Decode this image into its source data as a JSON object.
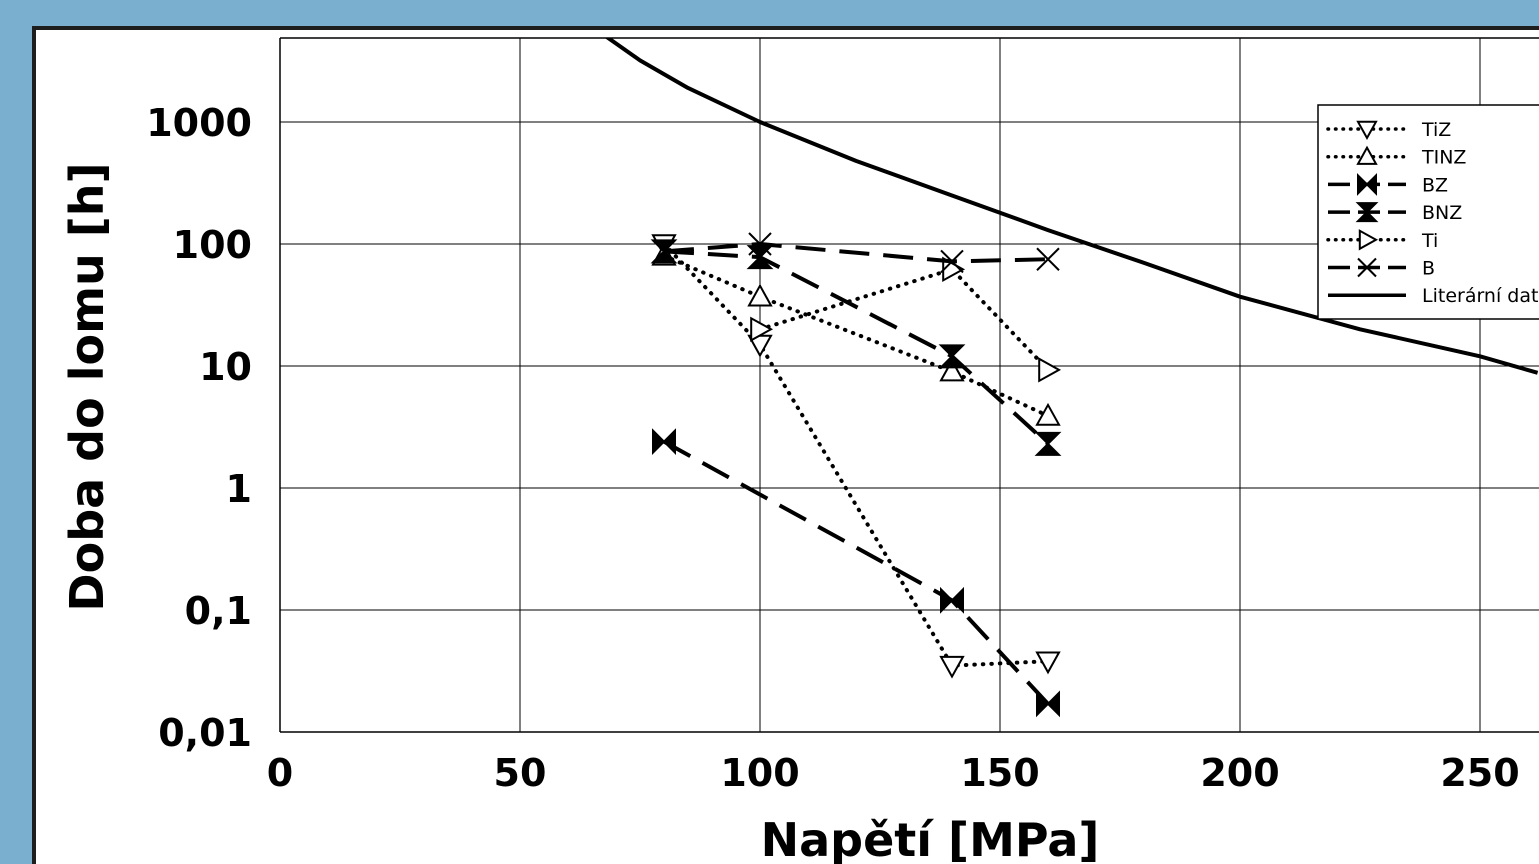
{
  "chart_data": {
    "type": "line",
    "xlabel": "Napětí [MPa]",
    "ylabel": "Doba do lomu [h]",
    "xlim": [
      0,
      262
    ],
    "ylim": [
      0.01,
      5000
    ],
    "yscale": "log",
    "grid": true,
    "legend_position": "top-right",
    "x_ticks": [
      "0",
      "50",
      "100",
      "150",
      "200",
      "250"
    ],
    "y_ticks": [
      "0,01",
      "0,1",
      "1",
      "10",
      "100",
      "1000"
    ],
    "series": [
      {
        "name": "TiZ",
        "line": "dotted",
        "marker": "triangle-down",
        "x": [
          80,
          100,
          140,
          160
        ],
        "y": [
          100,
          15,
          0.035,
          0.038
        ]
      },
      {
        "name": "TINZ",
        "line": "dotted",
        "marker": "triangle-up",
        "x": [
          80,
          100,
          140,
          160
        ],
        "y": [
          80,
          37,
          9,
          3.9
        ]
      },
      {
        "name": "BZ",
        "line": "dashed",
        "marker": "bowtie",
        "x": [
          80,
          140,
          160
        ],
        "y": [
          2.4,
          0.12,
          0.017
        ]
      },
      {
        "name": "BNZ",
        "line": "dashed",
        "marker": "hourglass",
        "x": [
          80,
          100,
          140,
          160
        ],
        "y": [
          87,
          78,
          12,
          2.3
        ]
      },
      {
        "name": "Ti",
        "line": "dotted",
        "marker": "triangle-right",
        "x": [
          100,
          140,
          160
        ],
        "y": [
          20,
          62,
          9.3
        ]
      },
      {
        "name": "B",
        "line": "dashed",
        "marker": "x",
        "x": [
          80,
          100,
          140,
          160
        ],
        "y": [
          87,
          100,
          72,
          75
        ]
      },
      {
        "name": "Literární data",
        "line": "solid",
        "marker": "none",
        "x": [
          68,
          75,
          85,
          100,
          120,
          140,
          160,
          180,
          200,
          225,
          250,
          262
        ],
        "y": [
          5000,
          3200,
          1900,
          1000,
          480,
          250,
          130,
          70,
          37,
          20,
          12,
          8.8
        ]
      }
    ]
  }
}
